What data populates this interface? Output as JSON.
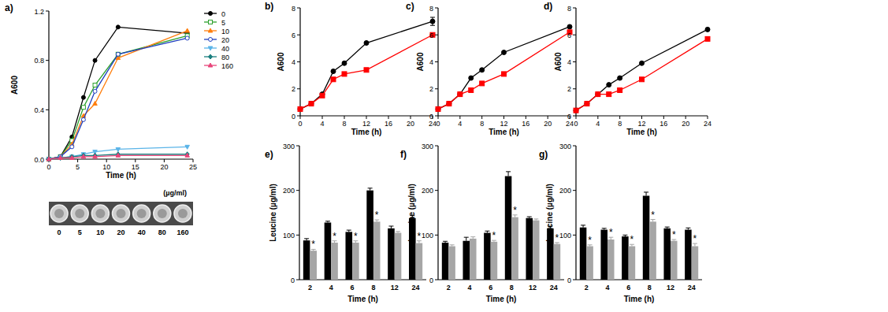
{
  "chart_data": [
    {
      "type": "line",
      "title": "a)",
      "x_label": "Time (h)",
      "y_label": "A600",
      "x": [
        0,
        2,
        4,
        6,
        8,
        12,
        24
      ],
      "xlim": [
        0,
        25
      ],
      "xticks": [
        0,
        5,
        10,
        15,
        20,
        25
      ],
      "ylim": [
        0,
        1.2
      ],
      "yticks": [
        {
          "value": 0,
          "label": "0.0"
        },
        0.4,
        0.8,
        1.2
      ],
      "legend": "right",
      "series": [
        {
          "name": "0",
          "color": "#000000",
          "marker": "circle",
          "values": [
            0,
            0.02,
            0.18,
            0.5,
            0.8,
            1.07,
            1.02
          ]
        },
        {
          "name": "5",
          "color": "#2ca02c",
          "marker": "square-open",
          "values": [
            0,
            0.02,
            0.15,
            0.42,
            0.6,
            0.85,
            1.0
          ]
        },
        {
          "name": "10",
          "color": "#ff7f0e",
          "marker": "triangle",
          "values": [
            0,
            0.02,
            0.12,
            0.35,
            0.45,
            0.82,
            1.04
          ]
        },
        {
          "name": "20",
          "color": "#1f3fbf",
          "marker": "circle-open",
          "values": [
            0,
            0.02,
            0.1,
            0.32,
            0.55,
            0.85,
            0.98
          ]
        },
        {
          "name": "40",
          "color": "#5ab4e8",
          "marker": "triangle-down",
          "values": [
            0,
            0.01,
            0.02,
            0.04,
            0.06,
            0.08,
            0.1
          ]
        },
        {
          "name": "80",
          "color": "#1a7f7f",
          "marker": "diamond",
          "values": [
            0,
            0.01,
            0.02,
            0.03,
            0.03,
            0.04,
            0.04
          ]
        },
        {
          "name": "160",
          "color": "#e8457a",
          "marker": "triangle",
          "values": [
            0,
            0.01,
            0.01,
            0.02,
            0.02,
            0.03,
            0.03
          ]
        }
      ],
      "inset": {
        "title": "(µg/ml)",
        "labels": [
          0,
          5,
          10,
          20,
          40,
          80,
          160
        ]
      }
    },
    {
      "type": "line",
      "title": "b)",
      "x_label": "Time (h)",
      "y_label": "A600",
      "x": [
        0,
        2,
        4,
        6,
        8,
        12,
        24
      ],
      "xlim": [
        0,
        24
      ],
      "xticks": [
        0,
        4,
        8,
        12,
        16,
        20,
        24
      ],
      "ylim": [
        0,
        8
      ],
      "yticks": [
        0,
        2,
        4,
        6,
        8
      ],
      "series": [
        {
          "color": "#000000",
          "marker": "circle",
          "values": [
            0.5,
            0.9,
            1.6,
            3.3,
            3.9,
            5.4,
            7.0
          ],
          "errors": [
            null,
            null,
            null,
            null,
            null,
            null,
            0.3
          ]
        },
        {
          "color": "#ff0000",
          "marker": "square",
          "values": [
            0.5,
            0.9,
            1.5,
            2.7,
            3.1,
            3.4,
            6.0
          ]
        }
      ]
    },
    {
      "type": "line",
      "title": "c)",
      "x_label": "Time (h)",
      "y_label": "A600",
      "x": [
        0,
        2,
        4,
        6,
        8,
        12,
        24
      ],
      "xlim": [
        0,
        24
      ],
      "xticks": [
        0,
        4,
        8,
        12,
        16,
        20,
        24
      ],
      "ylim": [
        0,
        8
      ],
      "yticks": [
        0,
        2,
        4,
        6,
        8
      ],
      "series": [
        {
          "color": "#000000",
          "marker": "circle",
          "values": [
            0.5,
            0.9,
            1.6,
            2.8,
            3.4,
            4.7,
            6.6
          ]
        },
        {
          "color": "#ff0000",
          "marker": "square",
          "values": [
            0.5,
            0.9,
            1.6,
            1.9,
            2.4,
            3.1,
            6.2
          ]
        }
      ]
    },
    {
      "type": "line",
      "title": "d)",
      "x_label": "Time (h)",
      "y_label": "A600",
      "x": [
        0,
        2,
        4,
        6,
        8,
        12,
        24
      ],
      "xlim": [
        0,
        24
      ],
      "xticks": [
        0,
        4,
        8,
        12,
        16,
        20,
        24
      ],
      "ylim": [
        0,
        8
      ],
      "yticks": [
        0,
        2,
        4,
        6,
        8
      ],
      "series": [
        {
          "color": "#000000",
          "marker": "circle",
          "values": [
            0.4,
            0.9,
            1.6,
            2.3,
            2.8,
            3.9,
            6.4
          ]
        },
        {
          "color": "#ff0000",
          "marker": "square",
          "values": [
            0.4,
            0.9,
            1.6,
            1.6,
            1.9,
            2.7,
            5.7
          ]
        }
      ]
    },
    {
      "type": "bar",
      "title": "e)",
      "x_label": "Time (h)",
      "y_label": "Leucine (µg/ml)",
      "categories": [
        "2",
        "4",
        "6",
        "8",
        "12",
        "24"
      ],
      "ylim": [
        0,
        300
      ],
      "yticks": [
        0,
        100,
        200,
        300
      ],
      "series": [
        {
          "color": "#000000",
          "values": [
            88,
            128,
            107,
            200,
            115,
            138
          ],
          "errors": [
            4,
            3,
            4,
            5,
            5,
            6
          ]
        },
        {
          "color": "#a6a6a6",
          "values": [
            65,
            83,
            83,
            130,
            105,
            82
          ],
          "errors": [
            3,
            4,
            4,
            4,
            3,
            5
          ],
          "significance": [
            "*",
            "*",
            "*",
            "*",
            null,
            "*"
          ]
        }
      ]
    },
    {
      "type": "bar",
      "title": "f)",
      "x_label": "Time (h)",
      "y_label": "Leucine (µg/ml)",
      "categories": [
        "2",
        "4",
        "6",
        "8",
        "12",
        "24"
      ],
      "ylim": [
        0,
        300
      ],
      "yticks": [
        0,
        100,
        200,
        300
      ],
      "series": [
        {
          "color": "#000000",
          "values": [
            83,
            87,
            105,
            232,
            138,
            115
          ],
          "errors": [
            3,
            8,
            4,
            10,
            3,
            5
          ]
        },
        {
          "color": "#a6a6a6",
          "values": [
            75,
            92,
            85,
            140,
            133,
            80
          ],
          "errors": [
            3,
            4,
            3,
            5,
            3,
            3
          ],
          "significance": [
            null,
            null,
            "*",
            "*",
            null,
            "*"
          ]
        }
      ]
    },
    {
      "type": "bar",
      "title": "g)",
      "x_label": "Time (h)",
      "y_label": "Leucine (µg/ml)",
      "categories": [
        "2",
        "4",
        "6",
        "8",
        "12",
        "24"
      ],
      "ylim": [
        0,
        300
      ],
      "yticks": [
        0,
        100,
        200,
        300
      ],
      "series": [
        {
          "color": "#000000",
          "values": [
            117,
            112,
            97,
            188,
            115,
            112
          ],
          "errors": [
            5,
            3,
            3,
            8,
            3,
            4
          ]
        },
        {
          "color": "#a6a6a6",
          "values": [
            75,
            90,
            75,
            130,
            87,
            75
          ],
          "errors": [
            3,
            5,
            4,
            5,
            3,
            6
          ],
          "significance": [
            "*",
            "*",
            "*",
            "*",
            "*",
            "*"
          ]
        }
      ]
    }
  ]
}
